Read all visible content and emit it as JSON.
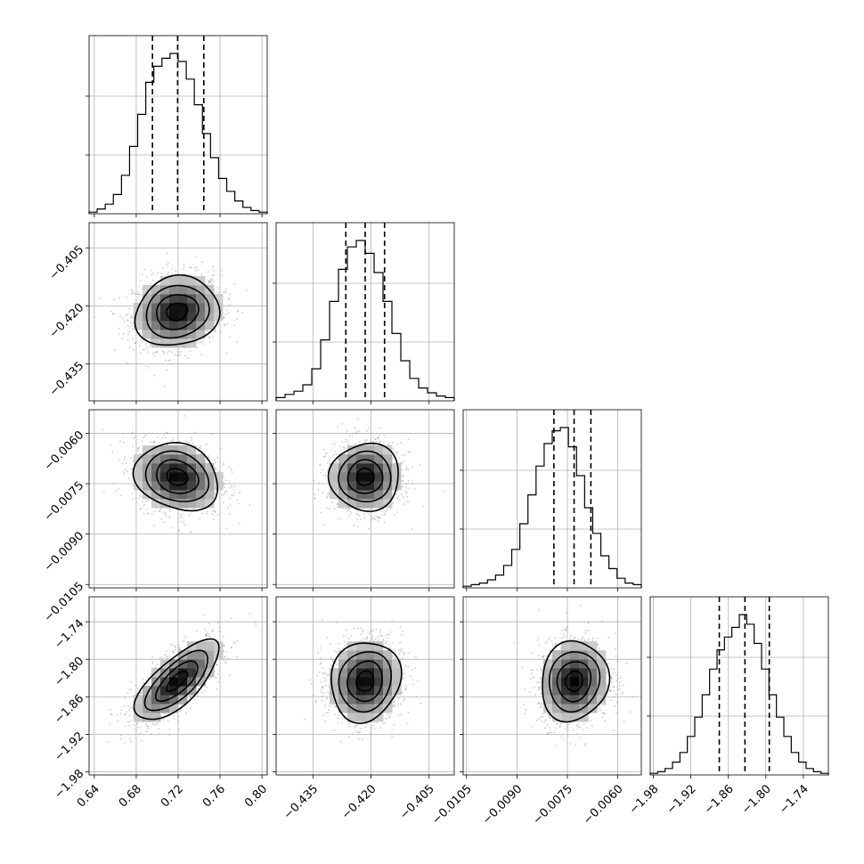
{
  "chart_data": {
    "type": "corner",
    "parameters": [
      {
        "range": [
          0.635,
          0.805
        ],
        "ticks": [
          0.64,
          0.68,
          0.72,
          0.76,
          0.8
        ],
        "tick_labels": [
          "0.64",
          "0.68",
          "0.72",
          "0.76",
          "0.80"
        ],
        "mean": 0.719,
        "sd": 0.02,
        "quantiles": [
          0.6955,
          0.7195,
          0.7445
        ],
        "hist_counts": [
          0.01,
          0.03,
          0.06,
          0.12,
          0.24,
          0.42,
          0.62,
          0.82,
          0.92,
          0.97,
          1.0,
          0.95,
          0.84,
          0.68,
          0.5,
          0.35,
          0.22,
          0.14,
          0.08,
          0.04,
          0.02,
          0.01
        ]
      },
      {
        "range": [
          -0.4445,
          -0.3985
        ],
        "ticks": [
          -0.435,
          -0.42,
          -0.405
        ],
        "tick_labels": [
          "−0.435",
          "−0.420",
          "−0.405"
        ],
        "mean": -0.4215,
        "sd": 0.0045,
        "quantiles": [
          -0.4265,
          -0.4215,
          -0.4165
        ],
        "hist_counts": [
          0.02,
          0.04,
          0.06,
          0.1,
          0.2,
          0.38,
          0.62,
          0.82,
          0.96,
          1.0,
          0.92,
          0.8,
          0.62,
          0.42,
          0.25,
          0.14,
          0.08,
          0.05,
          0.03,
          0.02
        ]
      },
      {
        "range": [
          -0.0106,
          -0.0053
        ],
        "ticks": [
          -0.0105,
          -0.009,
          -0.0075,
          -0.006
        ],
        "tick_labels": [
          "−0.0105",
          "−0.0090",
          "−0.0075",
          "−0.0060"
        ],
        "mean": -0.0073,
        "sd": 0.0005,
        "quantiles": [
          -0.0079,
          -0.0073,
          -0.0068
        ],
        "hist_counts": [
          0.01,
          0.02,
          0.03,
          0.05,
          0.08,
          0.14,
          0.24,
          0.4,
          0.58,
          0.76,
          0.9,
          0.98,
          1.0,
          0.88,
          0.7,
          0.5,
          0.34,
          0.2,
          0.12,
          0.06,
          0.03,
          0.02
        ]
      },
      {
        "range": [
          -1.985,
          -1.7
        ],
        "ticks": [
          -1.98,
          -1.92,
          -1.86,
          -1.8,
          -1.74
        ],
        "tick_labels": [
          "−1.98",
          "−1.92",
          "−1.86",
          "−1.80",
          "−1.74"
        ],
        "mean": -1.835,
        "sd": 0.032,
        "quantiles": [
          -1.8745,
          -1.8335,
          -1.7945
        ],
        "hist_counts": [
          0.01,
          0.02,
          0.04,
          0.08,
          0.14,
          0.24,
          0.36,
          0.5,
          0.66,
          0.78,
          0.86,
          0.92,
          1.0,
          0.94,
          0.82,
          0.66,
          0.5,
          0.36,
          0.24,
          0.14,
          0.08,
          0.04,
          0.02,
          0.01
        ]
      }
    ],
    "pairs": [
      {
        "x": 0,
        "y": 1,
        "corr": 0.12
      },
      {
        "x": 0,
        "y": 2,
        "corr": -0.18
      },
      {
        "x": 1,
        "y": 2,
        "corr": 0.02
      },
      {
        "x": 0,
        "y": 3,
        "corr": 0.72
      },
      {
        "x": 1,
        "y": 3,
        "corr": 0.1
      },
      {
        "x": 2,
        "y": 3,
        "corr": 0.08
      }
    ],
    "contour_levels_sigma": [
      0.5,
      1.0,
      1.5,
      2.0
    ],
    "grid": true
  }
}
